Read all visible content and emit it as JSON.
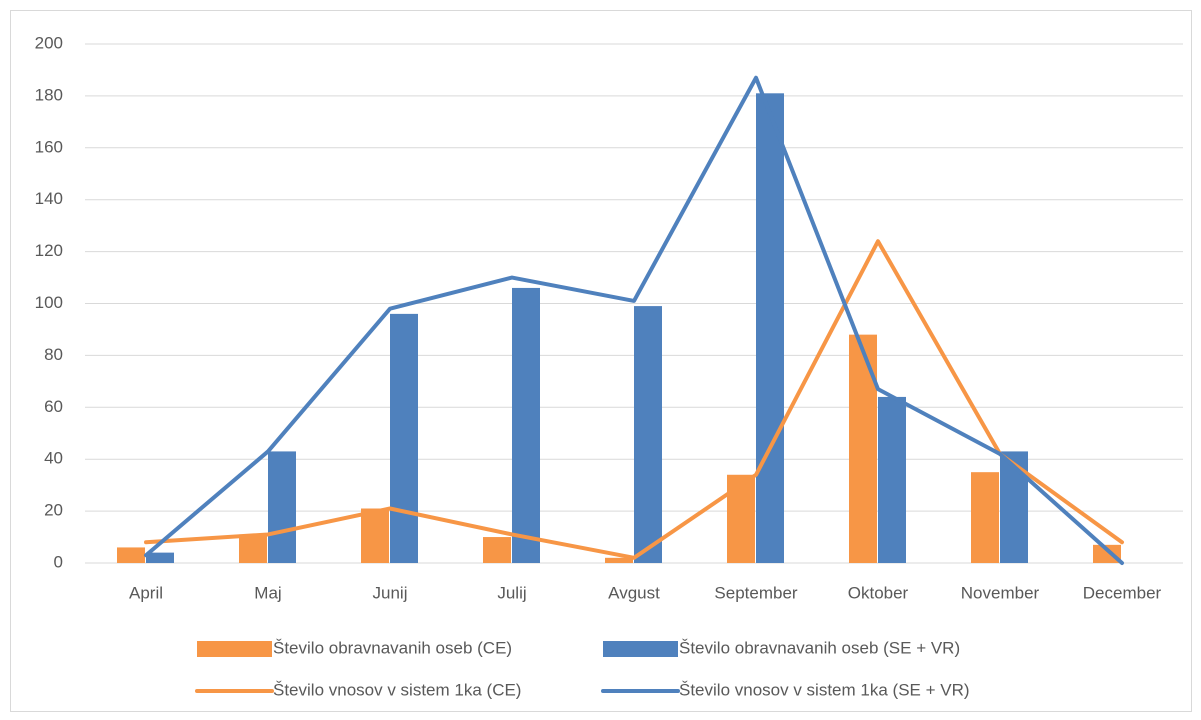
{
  "chart_data": {
    "type": "bar",
    "categories": [
      "April",
      "Maj",
      "Junij",
      "Julij",
      "Avgust",
      "September",
      "Oktober",
      "November",
      "December"
    ],
    "series": [
      {
        "name": "Število obravnavanih oseb (CE)",
        "type": "bar",
        "color": "#f79646",
        "values": [
          6,
          11,
          21,
          10,
          2,
          34,
          88,
          35,
          7
        ]
      },
      {
        "name": "Število obravnavanih oseb (SE + VR)",
        "type": "bar",
        "color": "#4f81bd",
        "values": [
          4,
          43,
          96,
          106,
          99,
          181,
          64,
          43,
          0
        ]
      },
      {
        "name": "Število vnosov v sistem 1ka (CE)",
        "type": "line",
        "color": "#f79646",
        "values": [
          8,
          11,
          21,
          11,
          2,
          34,
          124,
          42,
          8
        ]
      },
      {
        "name": "Število vnosov v sistem 1ka (SE + VR)",
        "type": "line",
        "color": "#4f81bd",
        "values": [
          3,
          43,
          98,
          110,
          101,
          187,
          67,
          42,
          0
        ]
      }
    ],
    "ylim": [
      0,
      200
    ],
    "yticks": [
      0,
      20,
      40,
      60,
      80,
      100,
      120,
      140,
      160,
      180,
      200
    ],
    "grid": true,
    "legend": "bottom"
  }
}
